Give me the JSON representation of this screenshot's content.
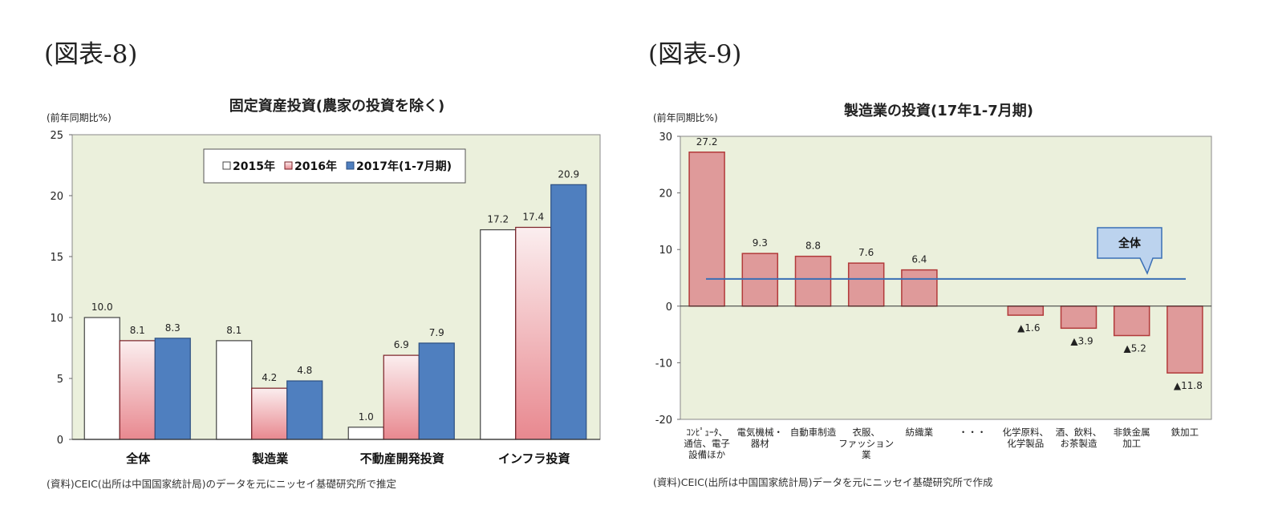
{
  "figure_labels": [
    "(図表-8)",
    "(図表-9)"
  ],
  "chart_data": [
    {
      "type": "bar",
      "title": "固定資産投資(農家の投資を除く)",
      "unit_label": "(前年同期比%)",
      "categories": [
        "全体",
        "製造業",
        "不動産開発投資",
        "インフラ投資"
      ],
      "series": [
        {
          "name": "2015年",
          "values": [
            10.0,
            8.1,
            1.0,
            17.2
          ],
          "color": "#ffffff"
        },
        {
          "name": "2016年",
          "values": [
            8.1,
            4.2,
            6.9,
            17.4
          ],
          "color": "#e99aa0"
        },
        {
          "name": "2017年(1-7月期)",
          "values": [
            8.3,
            4.8,
            7.9,
            20.9
          ],
          "color": "#4f7fbf"
        }
      ],
      "value_labels": [
        [
          "10.0",
          "8.1",
          "1.0",
          "17.2"
        ],
        [
          "8.1",
          "4.2",
          "6.9",
          "17.4"
        ],
        [
          "8.3",
          "4.8",
          "7.9",
          "20.9"
        ]
      ],
      "ylim": [
        0,
        25
      ],
      "yticks": [
        "0",
        "5",
        "10",
        "15",
        "20",
        "25"
      ],
      "grid": false,
      "legend_position": "top-center",
      "source": "(資料)CEIC(出所は中国国家統計局)のデータを元にニッセイ基礎研究所で推定",
      "plot_bg": "#ebf0dc"
    },
    {
      "type": "bar",
      "title": "製造業の投資(17年1-7月期)",
      "unit_label": "(前年同期比%)",
      "categories": [
        "コンピュータ、通信、電子設備ほか",
        "電気機械・器材",
        "自動車制造",
        "衣服、ファッション業",
        "紡織業",
        "・・・",
        "化学原料、化学製品",
        "酒、飲料、お茶製造",
        "非鉄金属加工",
        "鉄加工"
      ],
      "category_lines": [
        [
          "ｺﾝﾋﾟｭｰﾀ、",
          "通信、電子",
          "設備ほか"
        ],
        [
          "電気機械・",
          "器材"
        ],
        [
          "自動車制造"
        ],
        [
          "衣服、",
          "ファッション",
          "業"
        ],
        [
          "紡織業"
        ],
        [
          "・・・"
        ],
        [
          "化学原料、",
          "化学製品"
        ],
        [
          "酒、飲料、",
          "お茶製造"
        ],
        [
          "非鉄金属",
          "加工"
        ],
        [
          "鉄加工"
        ]
      ],
      "values": [
        27.2,
        9.3,
        8.8,
        7.6,
        6.4,
        null,
        -1.6,
        -3.9,
        -5.2,
        -11.8
      ],
      "value_labels": [
        "27.2",
        "9.3",
        "8.8",
        "7.6",
        "6.4",
        "",
        "▲1.6",
        "▲3.9",
        "▲5.2",
        "▲11.8"
      ],
      "reference_line": {
        "name": "全体",
        "value": 4.8,
        "color": "#3a6fb5"
      },
      "ylim": [
        -20,
        30
      ],
      "yticks": [
        "-20",
        "-10",
        "0",
        "10",
        "20",
        "30"
      ],
      "grid": false,
      "bar_color": "#df9a9a",
      "source": "(資料)CEIC(出所は中国国家統計局)データを元にニッセイ基礎研究所で作成",
      "plot_bg": "#ebf0dc"
    }
  ]
}
